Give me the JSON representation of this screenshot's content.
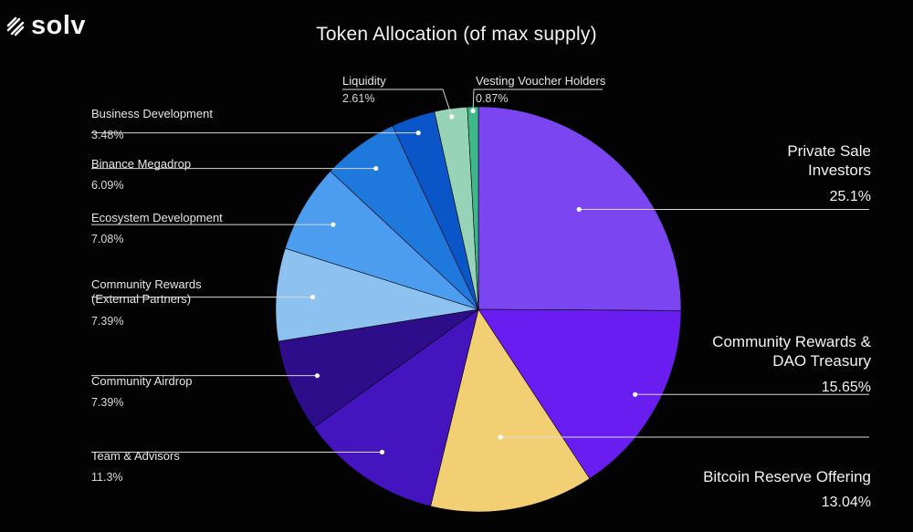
{
  "brand": {
    "name": "solv"
  },
  "chart_data": {
    "type": "pie",
    "title": "Token Allocation (of max supply)",
    "slices": [
      {
        "label": "Private Sale Investors",
        "value": 25.1,
        "value_label": "25.1%",
        "color": "#7b45f2"
      },
      {
        "label": "Community Rewards & DAO Treasury",
        "value": 15.65,
        "value_label": "15.65%",
        "color": "#6a1df0"
      },
      {
        "label": "Bitcoin Reserve Offering",
        "value": 13.04,
        "value_label": "13.04%",
        "color": "#f2cf72"
      },
      {
        "label": "Team & Advisors",
        "value": 11.3,
        "value_label": "11.3%",
        "color": "#4414bf"
      },
      {
        "label": "Community Airdrop",
        "value": 7.39,
        "value_label": "7.39%",
        "color": "#2d0d89"
      },
      {
        "label": "Community Rewards (External Partners)",
        "value": 7.39,
        "value_label": "7.39%",
        "color": "#8cc1f0"
      },
      {
        "label": "Ecosystem Development",
        "value": 7.08,
        "value_label": "7.08%",
        "color": "#4c9cf0"
      },
      {
        "label": "Binance Megadrop",
        "value": 6.09,
        "value_label": "6.09%",
        "color": "#1f78dc"
      },
      {
        "label": "Business Development",
        "value": 3.48,
        "value_label": "3.48%",
        "color": "#0a55c8"
      },
      {
        "label": "Liquidity",
        "value": 2.61,
        "value_label": "2.61%",
        "color": "#97d3b6"
      },
      {
        "label": "Vesting Voucher Holders",
        "value": 0.87,
        "value_label": "0.87%",
        "color": "#3fb888"
      }
    ],
    "start_angle": "12 o'clock",
    "direction": "clockwise"
  },
  "labels": {
    "private_sale": {
      "name": "Private Sale\nInvestors",
      "value": "25.1%"
    },
    "community_dao": {
      "name": "Community Rewards &\nDAO Treasury",
      "value": "15.65%"
    },
    "bitcoin_reserve": {
      "name": "Bitcoin Reserve Offering",
      "value": "13.04%"
    },
    "team": {
      "name": "Team & Advisors",
      "value": "11.3%"
    },
    "airdrop": {
      "name": "Community Airdrop",
      "value": "7.39%"
    },
    "community_ext": {
      "name": "Community Rewards\n(External Partners)",
      "value": "7.39%"
    },
    "ecosystem": {
      "name": "Ecosystem Development",
      "value": "7.08%"
    },
    "megadrop": {
      "name": "Binance Megadrop",
      "value": "6.09%"
    },
    "business": {
      "name": "Business Development",
      "value": "3.48%"
    },
    "liquidity": {
      "name": "Liquidity",
      "value": "2.61%"
    },
    "vesting": {
      "name": "Vesting Voucher Holders",
      "value": "0.87%"
    }
  }
}
